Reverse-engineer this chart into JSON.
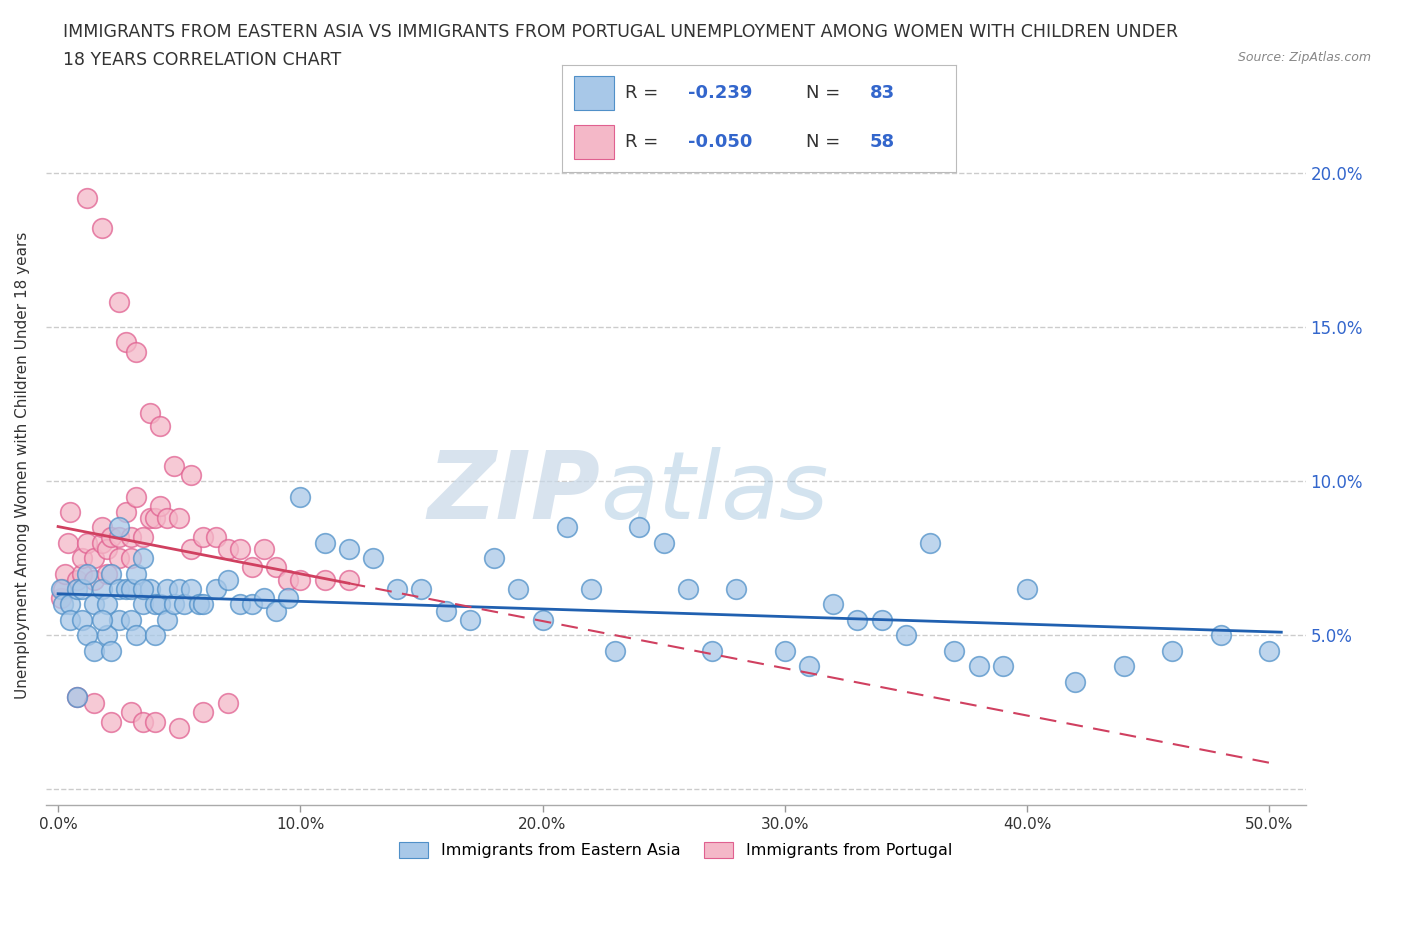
{
  "title_line1": "IMMIGRANTS FROM EASTERN ASIA VS IMMIGRANTS FROM PORTUGAL UNEMPLOYMENT AMONG WOMEN WITH CHILDREN UNDER",
  "title_line2": "18 YEARS CORRELATION CHART",
  "source_text": "Source: ZipAtlas.com",
  "ylabel": "Unemployment Among Women with Children Under 18 years",
  "legend_label1": "Immigrants from Eastern Asia",
  "legend_label2": "Immigrants from Portugal",
  "r1": -0.239,
  "n1": 83,
  "r2": -0.05,
  "n2": 58,
  "color1": "#a8c8e8",
  "color2": "#f4b8c8",
  "edge1": "#5090c8",
  "edge2": "#e06090",
  "trendline1_color": "#2060b0",
  "trendline2_color": "#d04060",
  "xlim": [
    -0.005,
    0.515
  ],
  "ylim": [
    -0.005,
    0.215
  ],
  "xticks": [
    0.0,
    0.1,
    0.2,
    0.3,
    0.4,
    0.5
  ],
  "xtick_labels": [
    "0.0%",
    "10.0%",
    "20.0%",
    "30.0%",
    "40.0%",
    "50.0%"
  ],
  "yticks": [
    0.0,
    0.05,
    0.1,
    0.15,
    0.2
  ],
  "ytick_labels_right": [
    "",
    "5.0%",
    "10.0%",
    "15.0%",
    "20.0%"
  ],
  "background_color": "#ffffff",
  "grid_color": "#cccccc",
  "watermark_zip": "ZIP",
  "watermark_atlas": "atlas",
  "eastern_asia_x": [
    0.001,
    0.002,
    0.005,
    0.005,
    0.008,
    0.01,
    0.01,
    0.012,
    0.012,
    0.015,
    0.015,
    0.018,
    0.02,
    0.02,
    0.022,
    0.022,
    0.025,
    0.025,
    0.028,
    0.03,
    0.03,
    0.032,
    0.032,
    0.035,
    0.035,
    0.038,
    0.04,
    0.04,
    0.042,
    0.045,
    0.045,
    0.048,
    0.05,
    0.052,
    0.055,
    0.058,
    0.06,
    0.065,
    0.07,
    0.075,
    0.08,
    0.085,
    0.09,
    0.095,
    0.1,
    0.11,
    0.12,
    0.13,
    0.14,
    0.15,
    0.16,
    0.17,
    0.18,
    0.19,
    0.2,
    0.21,
    0.22,
    0.23,
    0.24,
    0.25,
    0.26,
    0.27,
    0.28,
    0.3,
    0.31,
    0.32,
    0.33,
    0.34,
    0.35,
    0.36,
    0.37,
    0.38,
    0.39,
    0.4,
    0.42,
    0.44,
    0.46,
    0.48,
    0.5,
    0.025,
    0.035,
    0.008,
    0.018
  ],
  "eastern_asia_y": [
    0.065,
    0.06,
    0.06,
    0.055,
    0.065,
    0.065,
    0.055,
    0.07,
    0.05,
    0.06,
    0.045,
    0.065,
    0.06,
    0.05,
    0.07,
    0.045,
    0.065,
    0.055,
    0.065,
    0.065,
    0.055,
    0.07,
    0.05,
    0.075,
    0.06,
    0.065,
    0.06,
    0.05,
    0.06,
    0.065,
    0.055,
    0.06,
    0.065,
    0.06,
    0.065,
    0.06,
    0.06,
    0.065,
    0.068,
    0.06,
    0.06,
    0.062,
    0.058,
    0.062,
    0.095,
    0.08,
    0.078,
    0.075,
    0.065,
    0.065,
    0.058,
    0.055,
    0.075,
    0.065,
    0.055,
    0.085,
    0.065,
    0.045,
    0.085,
    0.08,
    0.065,
    0.045,
    0.065,
    0.045,
    0.04,
    0.06,
    0.055,
    0.055,
    0.05,
    0.08,
    0.045,
    0.04,
    0.04,
    0.065,
    0.035,
    0.04,
    0.045,
    0.05,
    0.045,
    0.085,
    0.065,
    0.03,
    0.055
  ],
  "portugal_x": [
    0.001,
    0.002,
    0.003,
    0.004,
    0.005,
    0.008,
    0.01,
    0.01,
    0.012,
    0.015,
    0.015,
    0.018,
    0.018,
    0.02,
    0.02,
    0.022,
    0.025,
    0.025,
    0.028,
    0.03,
    0.03,
    0.032,
    0.035,
    0.038,
    0.04,
    0.042,
    0.045,
    0.05,
    0.055,
    0.06,
    0.065,
    0.07,
    0.075,
    0.08,
    0.085,
    0.09,
    0.095,
    0.1,
    0.11,
    0.12,
    0.012,
    0.018,
    0.025,
    0.028,
    0.032,
    0.038,
    0.042,
    0.048,
    0.055,
    0.008,
    0.015,
    0.022,
    0.03,
    0.035,
    0.04,
    0.05,
    0.06,
    0.07
  ],
  "portugal_y": [
    0.062,
    0.065,
    0.07,
    0.08,
    0.09,
    0.068,
    0.07,
    0.075,
    0.08,
    0.068,
    0.075,
    0.08,
    0.085,
    0.07,
    0.078,
    0.082,
    0.075,
    0.082,
    0.09,
    0.075,
    0.082,
    0.095,
    0.082,
    0.088,
    0.088,
    0.092,
    0.088,
    0.088,
    0.078,
    0.082,
    0.082,
    0.078,
    0.078,
    0.072,
    0.078,
    0.072,
    0.068,
    0.068,
    0.068,
    0.068,
    0.192,
    0.182,
    0.158,
    0.145,
    0.142,
    0.122,
    0.118,
    0.105,
    0.102,
    0.03,
    0.028,
    0.022,
    0.025,
    0.022,
    0.022,
    0.02,
    0.025,
    0.028
  ]
}
